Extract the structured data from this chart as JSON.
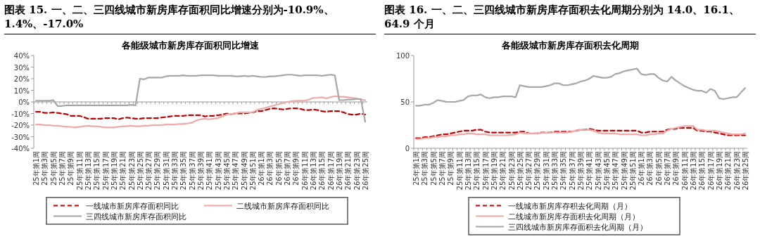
{
  "chart_data": [
    {
      "type": "line",
      "title": "图表 15. 一、二、三四线城市新房库存面积同比增速分别为-10.9%、1.4%、-17.0%",
      "subtitle": "各能级城市新房库存面积同比增速",
      "categories": [
        "25年第1周",
        null,
        "25年第3周",
        null,
        "25年第5周",
        null,
        "25年第7周",
        null,
        "25年第9周",
        null,
        "25年第11周",
        null,
        "25年第13周",
        null,
        "25年第15周",
        null,
        "25年第17周",
        null,
        "25年第19周",
        null,
        "25年第21周",
        null,
        "25年第23周",
        null,
        "25年第25周",
        null,
        "25年第27周",
        null,
        "25年第29周",
        null,
        "25年第31周",
        null,
        "25年第33周",
        null,
        "25年第35周",
        null,
        "25年第37周",
        null,
        "25年第39周",
        null,
        "25年第41周",
        null,
        "25年第43周",
        null,
        "25年第45周",
        null,
        "25年第47周",
        null,
        "25年第49周",
        null,
        "25年第51周",
        null,
        "26年第1周",
        null,
        "26年第3周",
        null,
        "26年第5周",
        null,
        "26年第7周",
        null,
        "26年第9周",
        null,
        "26年第11周",
        null,
        "26年第13周",
        null,
        "26年第15周",
        null,
        "26年第17周",
        null,
        "26年第19周",
        null,
        "26年第21周",
        null,
        "26年第23周",
        null,
        "26年第25周"
      ],
      "series": [
        {
          "name": "一线城市新房库存面积同比",
          "color": "#c00000",
          "line_style": "dashed",
          "values": [
            -8.5,
            -8.5,
            -9.5,
            -9.5,
            -9,
            -9.5,
            -10,
            -10.5,
            -12,
            -12,
            -12,
            -13,
            -14.5,
            -14.5,
            -14.5,
            -14.5,
            -14,
            -14,
            -14,
            -15,
            -14,
            -13.5,
            -14,
            -14.5,
            -14.5,
            -14,
            -14,
            -14,
            -14,
            -13.5,
            -13,
            -12.5,
            -12,
            -12,
            -12,
            -11.5,
            -11.5,
            -11.5,
            -11.5,
            -12.5,
            -12,
            -12,
            -11.5,
            -11,
            -10,
            -10.5,
            -10,
            -10,
            -10,
            -9.5,
            -9,
            -8,
            -8,
            -7,
            -6,
            -5.5,
            -6,
            -6.5,
            -6,
            -5.5,
            -5.5,
            -6,
            -7,
            -7,
            -6.5,
            -7,
            -8,
            -8.5,
            -8,
            -8,
            -8,
            -9,
            -10.5,
            -11,
            -11,
            -10,
            -10.9
          ]
        },
        {
          "name": "二线城市新房库存面积同比",
          "color": "#f2a7a7",
          "line_style": "solid",
          "values": [
            -19.5,
            -19.5,
            -20,
            -20,
            -20.5,
            -20.5,
            -21,
            -21.5,
            -21.5,
            -22,
            -21.5,
            -21,
            -20.5,
            -21,
            -21,
            -21.5,
            -22,
            -22,
            -22,
            -21.5,
            -21,
            -21,
            -20.5,
            -21,
            -21,
            -20.5,
            -20.5,
            -20,
            -20,
            -20,
            -19.5,
            -19.5,
            -19.5,
            -19,
            -19,
            -18.5,
            -18,
            -16,
            -15,
            -14.5,
            -15,
            -14.5,
            -14,
            -12.5,
            -11,
            -10.5,
            -10,
            -9,
            -9,
            -9,
            -9,
            -7,
            -6,
            -5,
            -4,
            -3,
            -2,
            -1,
            0,
            0.5,
            1,
            1,
            1,
            2,
            3.5,
            3.5,
            4,
            3,
            4,
            5,
            4.5,
            4.5,
            4,
            3.5,
            3,
            2,
            1.4
          ]
        },
        {
          "name": "三四线城市新房库存面积同比",
          "color": "#a6a6a6",
          "line_style": "solid",
          "values": [
            1,
            1,
            1,
            1,
            1.5,
            -3.5,
            -3.5,
            -3,
            -3,
            -3,
            -3,
            -3,
            -3,
            -3,
            -3,
            -3,
            -3,
            -3,
            -3,
            -3,
            -3,
            -3,
            -2.5,
            -3,
            20,
            19.5,
            21,
            21,
            21,
            21,
            22,
            22.5,
            22.5,
            22.5,
            23,
            22.5,
            22.5,
            22.5,
            23,
            23,
            23,
            23,
            22.5,
            22.5,
            22.5,
            22.5,
            22,
            22,
            22.5,
            22,
            22.5,
            22,
            21.5,
            21.5,
            22,
            22,
            22.5,
            23,
            23.5,
            23.5,
            23,
            22.5,
            23,
            23,
            23,
            23,
            22.5,
            23,
            23.5,
            23,
            1.5,
            1.5,
            2,
            2,
            2.5,
            2.5,
            -17.0
          ]
        }
      ],
      "ylim": [
        -40,
        40
      ],
      "yticks": [
        {
          "value": -40,
          "label": "-40%"
        },
        {
          "value": -30,
          "label": "-30%"
        },
        {
          "value": -20,
          "label": "-20%"
        },
        {
          "value": -10,
          "label": "-10%"
        },
        {
          "value": 0,
          "label": "0%"
        },
        {
          "value": 10,
          "label": "10%"
        },
        {
          "value": 20,
          "label": "20%"
        },
        {
          "value": 30,
          "label": "30%"
        },
        {
          "value": 40,
          "label": "40%"
        }
      ],
      "ref_lines": [
        {
          "axis": "y",
          "value": 0,
          "color": "#999999"
        }
      ],
      "grid": false,
      "legend": "bottom",
      "marker": "none"
    },
    {
      "type": "line",
      "title": "图表 16. 一、二、三四线城市新房库存面积去化周期分别为 14.0、16.1、64.9 个月",
      "subtitle": "各能级城市新房库存面积去化周期",
      "categories": [
        "25年第1周",
        null,
        "25年第3周",
        null,
        "25年第5周",
        null,
        "25年第7周",
        null,
        "25年第9周",
        null,
        "25年第11周",
        null,
        "25年第13周",
        null,
        "25年第15周",
        null,
        "25年第17周",
        null,
        "25年第19周",
        null,
        "25年第21周",
        null,
        "25年第23周",
        null,
        "25年第25周",
        null,
        "25年第27周",
        null,
        "25年第29周",
        null,
        "25年第31周",
        null,
        "25年第33周",
        null,
        "25年第35周",
        null,
        "25年第37周",
        null,
        "25年第39周",
        null,
        "25年第41周",
        null,
        "25年第43周",
        null,
        "25年第45周",
        null,
        "25年第47周",
        null,
        "25年第49周",
        null,
        "25年第51周",
        null,
        "26年第1周",
        null,
        "26年第3周",
        null,
        "26年第5周",
        null,
        "26年第7周",
        null,
        "26年第9周",
        null,
        "26年第11周",
        null,
        "26年第13周",
        null,
        "26年第15周",
        null,
        "26年第17周",
        null,
        "26年第19周",
        null,
        "26年第21周",
        null,
        "26年第23周",
        null,
        "26年第25周"
      ],
      "series": [
        {
          "name": "一线城市新房库存积去化周期（月）",
          "color": "#c00000",
          "line_style": "dashed",
          "values": [
            11,
            11,
            12,
            12,
            13,
            14,
            15,
            15,
            16,
            17,
            18,
            19,
            19,
            19,
            20,
            20,
            18,
            17,
            17,
            17,
            17,
            17,
            17,
            17,
            18,
            18,
            16,
            16,
            16,
            17,
            17,
            17,
            18,
            18,
            18,
            18,
            18,
            19,
            20,
            20,
            21,
            20,
            19,
            19,
            19,
            19,
            19,
            19,
            19,
            19,
            19,
            19,
            17,
            17,
            18,
            18,
            18,
            18,
            20,
            21,
            21,
            22,
            22,
            22,
            22,
            19,
            19,
            18,
            18,
            17,
            16,
            15,
            14,
            14,
            14,
            14,
            14.0
          ]
        },
        {
          "name": "二线城市新房库存面积去化周期（月）",
          "color": "#f2a7a7",
          "line_style": "solid",
          "values": [
            10,
            10,
            11,
            11,
            12,
            12,
            13,
            13,
            14,
            14,
            15,
            15,
            16,
            16,
            15,
            15,
            15,
            14,
            14,
            14,
            14,
            14,
            14.5,
            15,
            17,
            16,
            16,
            16,
            16,
            16.5,
            16.5,
            17,
            17,
            17,
            17,
            17,
            18,
            19,
            20,
            20,
            20,
            19,
            17,
            16,
            16,
            16,
            16,
            15,
            15,
            15,
            15,
            15,
            14,
            14,
            15,
            15,
            16,
            16,
            19,
            21,
            22,
            23,
            24,
            24,
            24,
            20,
            20,
            19,
            19,
            19,
            18,
            17,
            16,
            15,
            15,
            15,
            16.1
          ]
        },
        {
          "name": "三四线城市新房库存面积去化周期（月）",
          "color": "#a6a6a6",
          "line_style": "solid",
          "values": [
            46,
            46,
            47,
            47,
            49,
            52,
            51,
            50,
            50,
            50,
            51,
            52,
            56,
            57,
            57,
            58,
            55,
            54,
            55,
            55,
            56,
            56,
            56,
            55,
            68,
            67,
            66,
            66,
            66,
            66,
            67,
            68,
            70,
            70,
            68,
            68,
            69,
            70,
            72,
            73,
            75,
            78,
            77,
            76,
            76,
            77,
            80,
            81,
            83,
            84,
            85,
            86,
            80,
            79,
            80,
            80,
            76,
            73,
            72,
            77,
            73,
            70,
            67,
            65,
            63,
            62,
            62,
            60,
            64,
            62,
            54,
            53,
            54,
            55,
            55,
            60,
            64.9
          ]
        }
      ],
      "ylim": [
        0,
        100
      ],
      "yticks": [
        0,
        50,
        100
      ],
      "grid": false,
      "legend": "bottom",
      "marker": "none"
    }
  ]
}
